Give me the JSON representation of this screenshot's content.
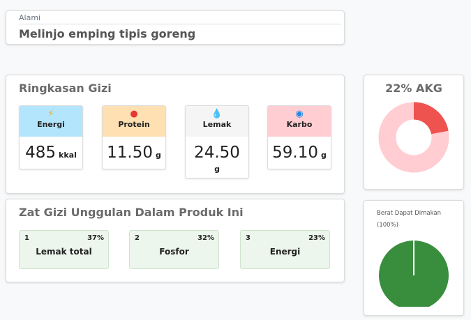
{
  "product": {
    "category": "Alami",
    "name": "Melinjo emping tipis goreng"
  },
  "summary": {
    "title": "Ringkasan Gizi",
    "items": [
      {
        "label": "Energi",
        "value": "485",
        "unit": "kkal",
        "icon": "lightning-icon",
        "color": "#b3e5fc"
      },
      {
        "label": "Protein",
        "value": "11.50",
        "unit": "g",
        "icon": "meat-icon",
        "color": "#ffe0b2"
      },
      {
        "label": "Lemak",
        "value": "24.50",
        "unit": "g",
        "icon": "oil-drop-icon",
        "color": "#f5f5f5"
      },
      {
        "label": "Karbo",
        "value": "59.10",
        "unit": "g",
        "icon": "grain-icon",
        "color": "#ffcdd2"
      }
    ]
  },
  "highlights": {
    "title": "Zat Gizi Unggulan Dalam Produk Ini",
    "items": [
      {
        "rank": "1",
        "percent": "37%",
        "name": "Lemak total"
      },
      {
        "rank": "2",
        "percent": "32%",
        "name": "Fosfor"
      },
      {
        "rank": "3",
        "percent": "23%",
        "name": "Energi"
      }
    ]
  },
  "akg": {
    "title": "22% AKG",
    "percent": 22,
    "colors": {
      "filled": "#ef5350",
      "rest": "#ffcdd2"
    }
  },
  "edible": {
    "label": "Berat Dapat Dimakan",
    "percent_label": "(100%)",
    "percent": 100,
    "color": "#388e3c"
  }
}
